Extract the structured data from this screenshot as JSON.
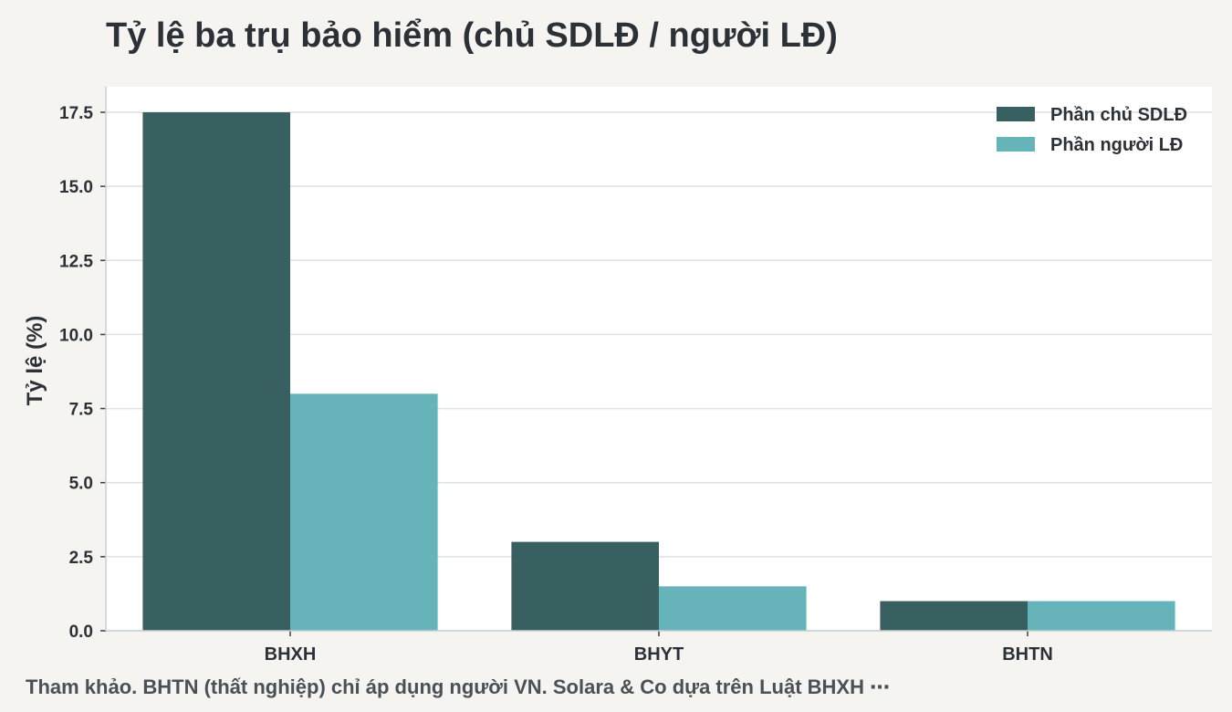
{
  "chart_data": {
    "type": "bar",
    "title": "Tỷ lệ ba trụ bảo hiểm (chủ SDLĐ / người LĐ)",
    "xlabel": "",
    "ylabel": "Tỷ lệ (%)",
    "categories": [
      "BHXH",
      "BHYT",
      "BHTN"
    ],
    "series": [
      {
        "name": "Phần chủ SDLĐ",
        "values": [
          17.5,
          3.0,
          1.0
        ],
        "color": "#386060"
      },
      {
        "name": "Phần người LĐ",
        "values": [
          8.0,
          1.5,
          1.0
        ],
        "color": "#66b4b9"
      }
    ],
    "ylim": [
      0,
      17.5
    ],
    "yticks": [
      "0.0",
      "2.5",
      "5.0",
      "7.5",
      "10.0",
      "12.5",
      "15.0",
      "17.5"
    ],
    "grid": true,
    "legend_position": "top-right",
    "plot_background": "#ffffff",
    "page_background": "#f5f4f0"
  },
  "footnote": "Tham khảo. BHTN (thất nghiệp) chỉ áp dụng người VN. Solara & Co dựa trên Luật BHXH ⋯"
}
